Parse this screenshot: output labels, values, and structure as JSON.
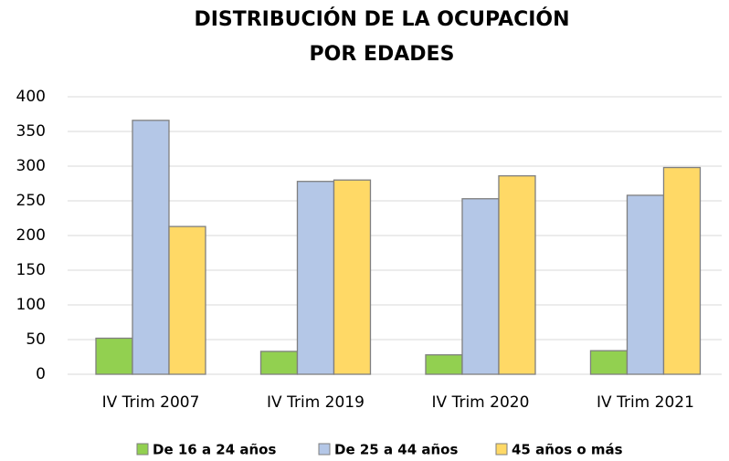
{
  "chart_data": {
    "type": "bar",
    "title": [
      "DISTRIBUCIÓN DE LA OCUPACIÓN",
      "POR EDADES"
    ],
    "categories": [
      "IV Trim 2007",
      "IV Trim 2019",
      "IV Trim 2020",
      "IV Trim 2021"
    ],
    "series": [
      {
        "name": "De 16 a 24 años",
        "color": "#92d050",
        "values": [
          52,
          33,
          28,
          34
        ]
      },
      {
        "name": "De 25 a 44 años",
        "color": "#b4c7e7",
        "values": [
          366,
          278,
          253,
          258
        ]
      },
      {
        "name": "45 años o más",
        "color": "#ffd966",
        "values": [
          213,
          280,
          286,
          298
        ]
      }
    ],
    "ylim": [
      0,
      400
    ],
    "yticks": [
      0,
      50,
      100,
      150,
      200,
      250,
      300,
      350,
      400
    ],
    "grid": true
  }
}
